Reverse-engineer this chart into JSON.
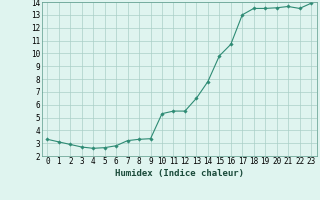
{
  "x": [
    0,
    1,
    2,
    3,
    4,
    5,
    6,
    7,
    8,
    9,
    10,
    11,
    12,
    13,
    14,
    15,
    16,
    17,
    18,
    19,
    20,
    21,
    22,
    23
  ],
  "y": [
    3.3,
    3.1,
    2.9,
    2.7,
    2.6,
    2.65,
    2.8,
    3.2,
    3.3,
    3.35,
    5.3,
    5.5,
    5.5,
    6.5,
    7.8,
    9.8,
    10.7,
    13.0,
    13.5,
    13.5,
    13.55,
    13.65,
    13.5,
    13.9
  ],
  "line_color": "#2e8b74",
  "marker": "D",
  "marker_size": 1.8,
  "bg_color": "#dff4ef",
  "grid_color": "#aacfc7",
  "xlabel": "Humidex (Indice chaleur)",
  "xlim": [
    -0.5,
    23.5
  ],
  "ylim": [
    2,
    14
  ],
  "xticks": [
    0,
    1,
    2,
    3,
    4,
    5,
    6,
    7,
    8,
    9,
    10,
    11,
    12,
    13,
    14,
    15,
    16,
    17,
    18,
    19,
    20,
    21,
    22,
    23
  ],
  "yticks": [
    2,
    3,
    4,
    5,
    6,
    7,
    8,
    9,
    10,
    11,
    12,
    13,
    14
  ],
  "tick_fontsize": 5.5,
  "xlabel_fontsize": 6.5,
  "font_family": "monospace"
}
